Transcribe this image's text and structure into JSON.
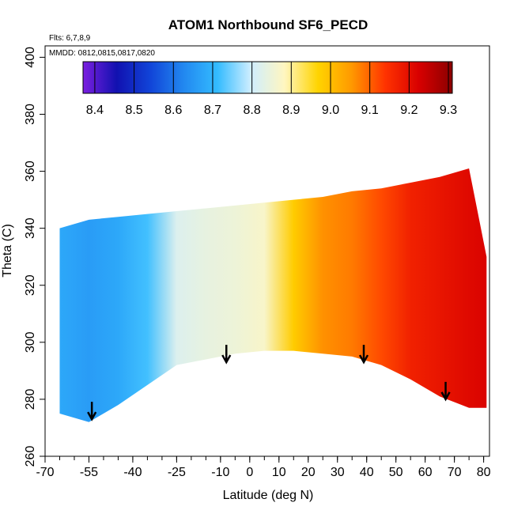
{
  "chart_data": {
    "type": "heatmap",
    "title": "ATOM1 Northbound SF6_PECD",
    "annotations": {
      "flights": "Flts: 6,7,8,9",
      "dates": "MMDD: 0812,0815,0817,0820"
    },
    "xlabel": "Latitude (deg N)",
    "ylabel": "Theta (C)",
    "xlim": [
      -70,
      82
    ],
    "ylim": [
      260,
      404
    ],
    "xticks": [
      -70,
      -55,
      -40,
      -25,
      -10,
      0,
      10,
      20,
      30,
      40,
      50,
      60,
      70,
      80
    ],
    "xtick_labels": [
      "-70",
      "-55",
      "-40",
      "-25",
      "-10",
      "0",
      "10",
      "20",
      "30",
      "40",
      "50",
      "60",
      "70",
      "80"
    ],
    "yticks": [
      260,
      280,
      300,
      320,
      340,
      360,
      380,
      400
    ],
    "ytick_labels": [
      "260",
      "280",
      "300",
      "320",
      "340",
      "360",
      "380",
      "400"
    ],
    "colorbar": {
      "ticks": [
        8.4,
        8.5,
        8.6,
        8.7,
        8.8,
        8.9,
        9.0,
        9.1,
        9.2,
        9.3
      ],
      "tick_labels": [
        "8.4",
        "8.5",
        "8.6",
        "8.7",
        "8.8",
        "8.9",
        "9.0",
        "9.1",
        "9.2",
        "9.3"
      ],
      "range": [
        8.37,
        9.31
      ],
      "colors": [
        "#7b1fe0",
        "#1111b0",
        "#1144d8",
        "#2288f0",
        "#33bbff",
        "#cfeeff",
        "#fff6c0",
        "#ffd400",
        "#ff9900",
        "#ff3300",
        "#d80000",
        "#8b0000"
      ]
    },
    "grid": [
      {
        "lat": -65,
        "top": 340,
        "bottom": 275,
        "value": 8.68
      },
      {
        "lat": -55,
        "top": 343,
        "bottom": 272,
        "value": 8.66
      },
      {
        "lat": -45,
        "top": 344,
        "bottom": 278,
        "value": 8.68
      },
      {
        "lat": -35,
        "top": 345,
        "bottom": 285,
        "value": 8.72
      },
      {
        "lat": -25,
        "top": 346,
        "bottom": 292,
        "value": 8.82
      },
      {
        "lat": -15,
        "top": 347,
        "bottom": 294,
        "value": 8.84
      },
      {
        "lat": -5,
        "top": 348,
        "bottom": 296,
        "value": 8.85
      },
      {
        "lat": 5,
        "top": 349,
        "bottom": 297,
        "value": 8.87
      },
      {
        "lat": 15,
        "top": 350,
        "bottom": 297,
        "value": 8.98
      },
      {
        "lat": 25,
        "top": 351,
        "bottom": 296,
        "value": 9.06
      },
      {
        "lat": 35,
        "top": 353,
        "bottom": 295,
        "value": 9.08
      },
      {
        "lat": 45,
        "top": 354,
        "bottom": 292,
        "value": 9.12
      },
      {
        "lat": 55,
        "top": 356,
        "bottom": 287,
        "value": 9.17
      },
      {
        "lat": 65,
        "top": 358,
        "bottom": 281,
        "value": 9.19
      },
      {
        "lat": 75,
        "top": 361,
        "bottom": 277,
        "value": 9.21
      },
      {
        "lat": 81,
        "top": 330,
        "bottom": 277,
        "value": 9.22
      }
    ],
    "profile_markers": [
      {
        "lat": -54,
        "theta": 273
      },
      {
        "lat": -8,
        "theta": 293
      },
      {
        "lat": 39,
        "theta": 293
      },
      {
        "lat": 67,
        "theta": 280
      }
    ]
  }
}
